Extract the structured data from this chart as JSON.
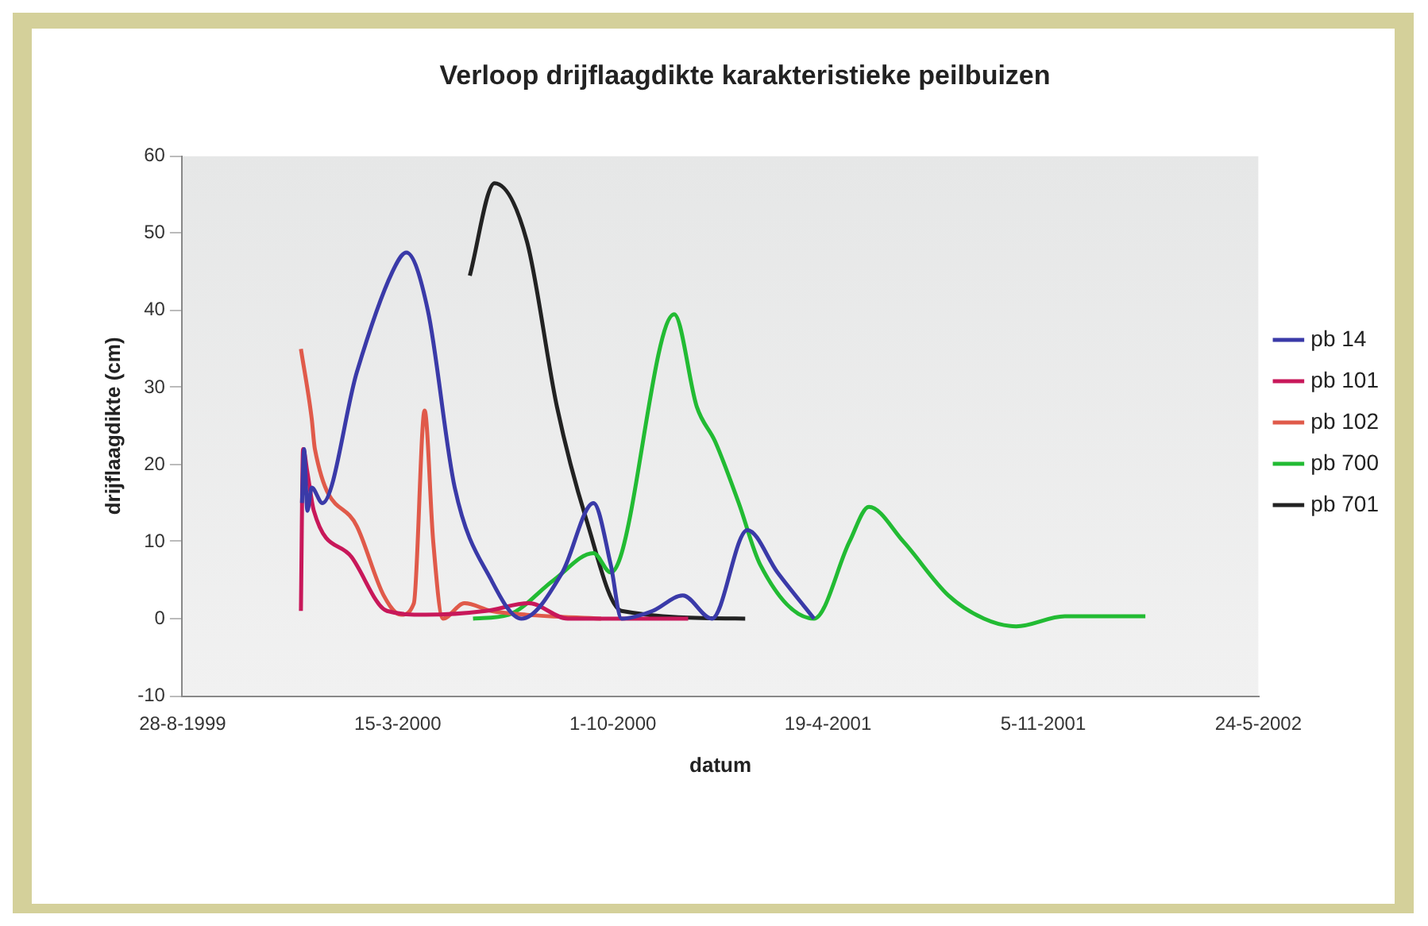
{
  "chart_data": {
    "type": "line",
    "title": "Verloop drijflaagdikte karakteristieke peilbuizen",
    "xlabel": "datum",
    "ylabel": "drijflaagdikte (cm)",
    "xlim": [
      "1999-08-28",
      "2002-05-24"
    ],
    "xticks": [
      {
        "value": "1999-08-28",
        "label": "28-8-1999"
      },
      {
        "value": "2000-03-15",
        "label": "15-3-2000"
      },
      {
        "value": "2000-10-01",
        "label": "1-10-2000"
      },
      {
        "value": "2001-04-19",
        "label": "19-4-2001"
      },
      {
        "value": "2001-11-05",
        "label": "5-11-2001"
      },
      {
        "value": "2002-05-24",
        "label": "24-5-2002"
      }
    ],
    "ylim": [
      -10,
      60
    ],
    "yticks": [
      -10,
      0,
      10,
      20,
      30,
      40,
      50,
      60
    ],
    "grid": false,
    "legend": "right",
    "marker": "none",
    "line_style": "solid",
    "series": [
      {
        "name": "pb 14",
        "color": "#3a3aa8",
        "x": [
          "1999-12-17",
          "1999-12-19",
          "1999-12-22",
          "1999-12-26",
          "2000-01-05",
          "2000-02-06",
          "2000-03-10",
          "2000-03-23",
          "2000-04-12",
          "2000-05-07",
          "2000-06-10",
          "2000-07-08",
          "2000-08-15",
          "2000-09-13",
          "2000-09-29",
          "2000-10-09",
          "2000-11-07",
          "2000-12-05",
          "2001-01-01",
          "2001-02-03",
          "2001-03-03",
          "2001-04-06"
        ],
        "values": [
          15,
          22,
          14,
          17,
          15,
          32,
          45,
          47.5,
          40,
          17,
          5,
          0,
          6,
          15,
          7,
          0,
          1,
          3,
          0,
          11.5,
          6,
          0
        ]
      },
      {
        "name": "pb 101",
        "color": "#c8185a",
        "x": [
          "1999-12-16",
          "1999-12-18",
          "1999-12-22",
          "1999-12-28",
          "2000-02-01",
          "2000-03-05",
          "2000-04-10",
          "2000-06-05",
          "2000-07-15",
          "2000-08-20",
          "2000-12-10"
        ],
        "values": [
          1,
          22,
          19,
          14,
          8,
          1,
          0.5,
          1,
          2,
          0,
          0
        ]
      },
      {
        "name": "pb 102",
        "color": "#e05a4a",
        "x": [
          "1999-12-16",
          "1999-12-26",
          "1999-12-29",
          "2000-02-06",
          "2000-03-02",
          "2000-03-18",
          "2000-03-30",
          "2000-04-09",
          "2000-04-17",
          "2000-04-26",
          "2000-05-16",
          "2000-06-10",
          "2000-07-13",
          "2000-09-20"
        ],
        "values": [
          35,
          26,
          22,
          12,
          3,
          0.5,
          2,
          27,
          10,
          0,
          2,
          1,
          0.5,
          0
        ]
      },
      {
        "name": "pb 700",
        "color": "#22bb33",
        "x": [
          "2000-05-24",
          "2000-06-26",
          "2000-08-07",
          "2000-09-13",
          "2000-09-29",
          "2000-10-08",
          "2000-11-27",
          "2000-12-18",
          "2001-01-04",
          "2001-01-26",
          "2001-02-15",
          "2001-04-06",
          "2001-05-09",
          "2001-05-27",
          "2001-06-28",
          "2001-08-09",
          "2001-09-11",
          "2001-10-11",
          "2001-11-25",
          "2002-02-08"
        ],
        "values": [
          0,
          0.5,
          5,
          8.5,
          6,
          8,
          39.5,
          27.5,
          23,
          15,
          7,
          0,
          10,
          14.5,
          10,
          3,
          0,
          -1,
          0.3,
          0.3
        ]
      },
      {
        "name": "pb 701",
        "color": "#222222",
        "x": [
          "2000-05-21",
          "2000-06-13",
          "2000-07-13",
          "2000-08-10",
          "2000-09-06",
          "2000-10-09",
          "2001-02-01"
        ],
        "values": [
          44.5,
          56.5,
          49,
          27.5,
          13,
          1,
          0
        ]
      }
    ]
  }
}
